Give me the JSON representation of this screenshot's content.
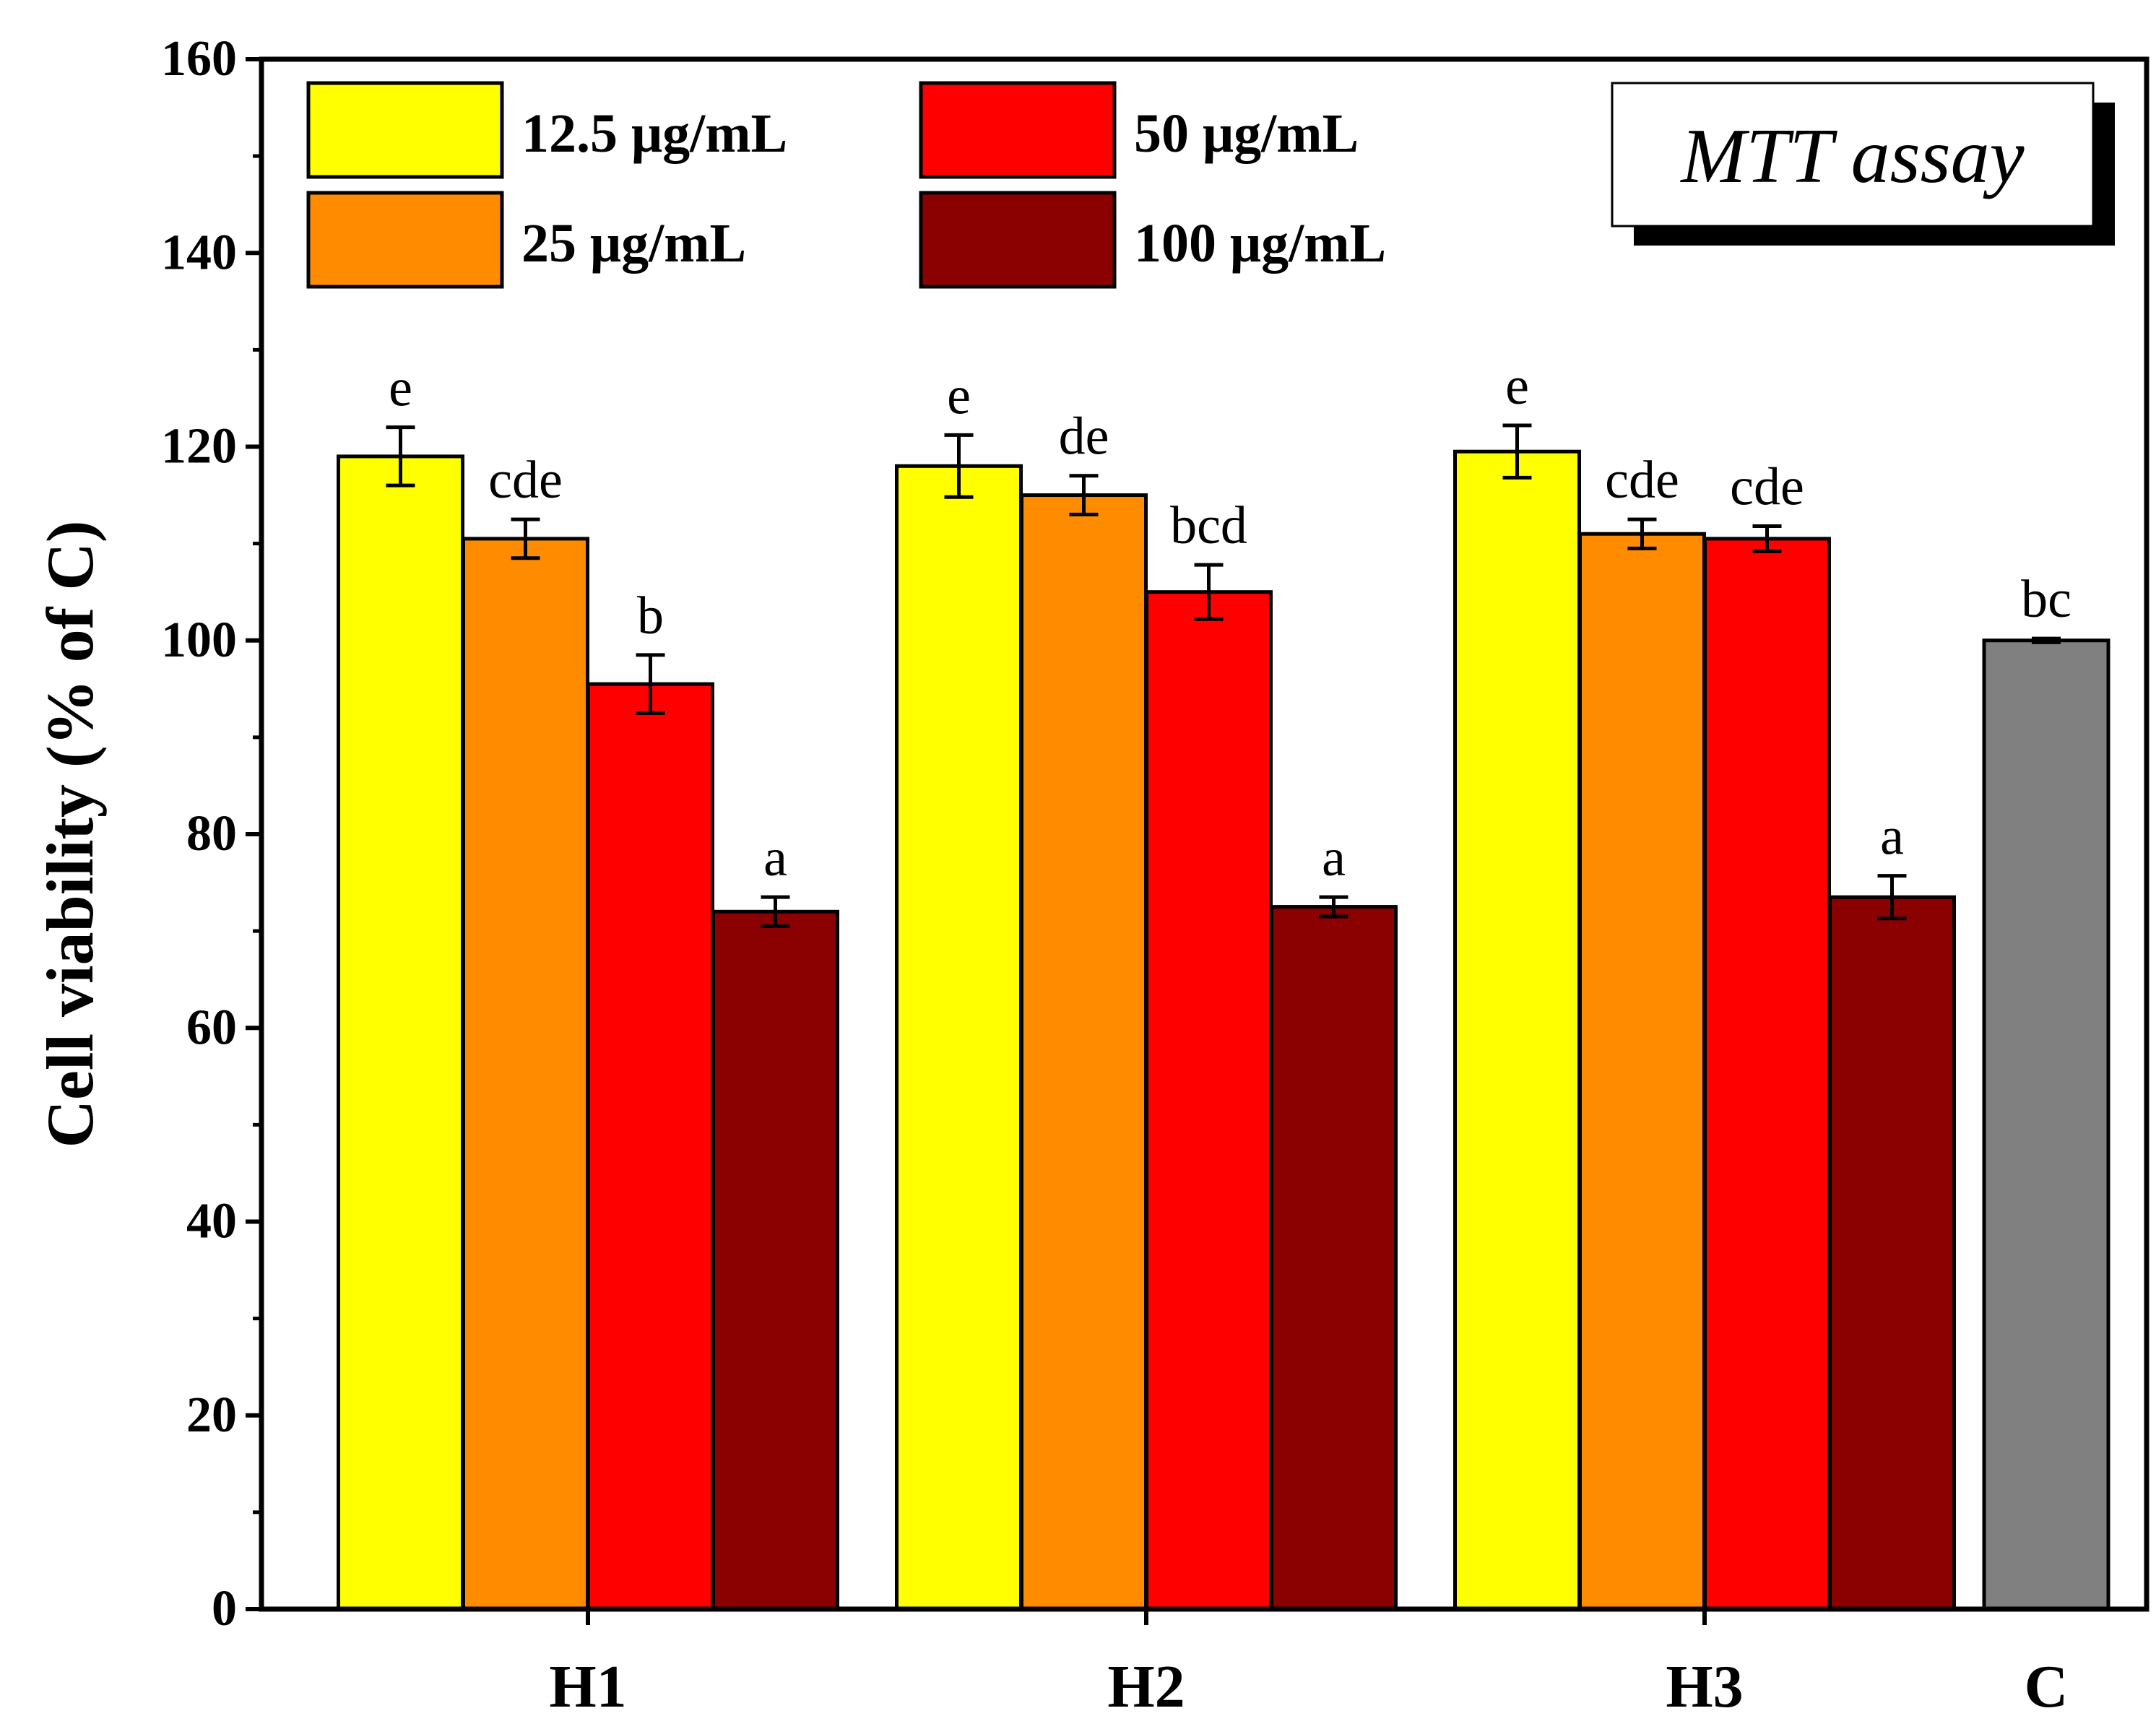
{
  "chart_data": {
    "type": "bar",
    "title": "MTT assay",
    "xlabel": "",
    "ylabel": "Cell viability (% of C)",
    "ylim": [
      0,
      160
    ],
    "yticks": [
      "0",
      "20",
      "40",
      "60",
      "80",
      "100",
      "120",
      "140",
      "160"
    ],
    "categories": [
      "H1",
      "H2",
      "H3",
      "C"
    ],
    "series": [
      {
        "name": "12.5 μg/mL",
        "color": "#FFFF00",
        "values": [
          119,
          118,
          119.5,
          null
        ],
        "errors": [
          3,
          3.2,
          2.7,
          null
        ],
        "labels": [
          "e",
          "e",
          "e",
          null
        ]
      },
      {
        "name": "25 μg/mL",
        "color": "#FF8C00",
        "values": [
          110.5,
          115,
          111,
          null
        ],
        "errors": [
          2,
          2,
          1.5,
          null
        ],
        "labels": [
          "cde",
          "de",
          "cde",
          null
        ]
      },
      {
        "name": "50 μg/mL",
        "color": "#FF0000",
        "values": [
          95.5,
          105,
          110.5,
          null
        ],
        "errors": [
          3,
          2.8,
          1.3,
          null
        ],
        "labels": [
          "b",
          "bcd",
          "cde",
          null
        ]
      },
      {
        "name": "100 μg/mL",
        "color": "#8B0000",
        "values": [
          72,
          72.5,
          73.5,
          null
        ],
        "errors": [
          1.5,
          1,
          2.2,
          null
        ],
        "labels": [
          "a",
          "a",
          "a",
          null
        ]
      }
    ],
    "control": {
      "category": "C",
      "value": 100,
      "error": 0.2,
      "label": "bc",
      "color": "#808080"
    },
    "legend_position": "top-left",
    "annotation_box": {
      "text": "MTT assay",
      "position": "top-right"
    }
  }
}
